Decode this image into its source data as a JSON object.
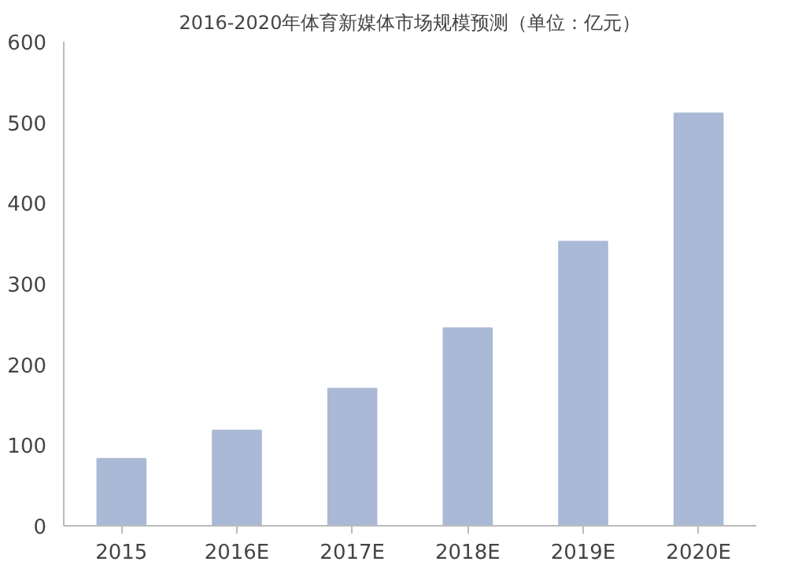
{
  "chart_data": {
    "type": "bar",
    "title": "2016-2020年体育新媒体市场规模预测（单位：亿元）",
    "categories": [
      "2015",
      "2016E",
      "2017E",
      "2018E",
      "2019E",
      "2020E"
    ],
    "values": [
      83,
      118,
      170,
      245,
      352,
      511
    ],
    "color": "#a9b9d6",
    "ylim": [
      0,
      600
    ],
    "yticks": [
      0,
      100,
      200,
      300,
      400,
      500,
      600
    ],
    "grid": false
  }
}
